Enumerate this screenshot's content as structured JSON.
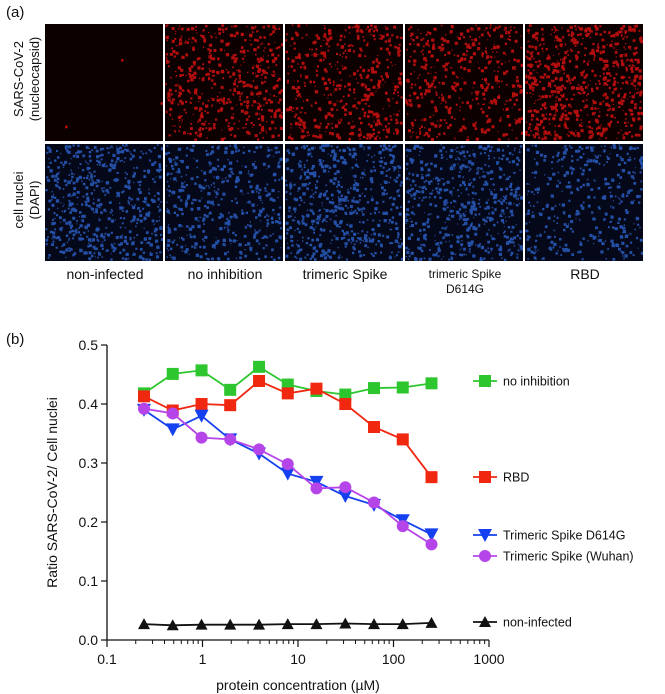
{
  "panel_a": {
    "label": "(a)",
    "row_labels": [
      {
        "line1": "SARS-CoV-2",
        "line2": "(nucleocapsid)"
      },
      {
        "line1": "cell nuclei",
        "line2": "(DAPI)"
      }
    ],
    "column_labels": [
      {
        "line1": "non-infected",
        "line2": ""
      },
      {
        "line1": "no inhibition",
        "line2": ""
      },
      {
        "line1": "trimeric Spike",
        "line2": ""
      },
      {
        "line1": "trimeric Spike",
        "line2": "D614G"
      },
      {
        "line1": "RBD",
        "line2": ""
      }
    ],
    "colors": {
      "red_channel": "#d01010",
      "blue_channel": "#2a5cc0"
    }
  },
  "panel_b": {
    "label": "(b)"
  },
  "chart_data": {
    "type": "line",
    "xscale": "log",
    "xlabel": "protein concentration (µM)",
    "ylabel": "Ratio SARS-CoV-2/ Cell nuclei",
    "xlim": [
      0.1,
      1000
    ],
    "ylim": [
      0.0,
      0.5
    ],
    "x_ticks": [
      0.1,
      1,
      10,
      100,
      1000
    ],
    "x_tick_labels": [
      "0.1",
      "1",
      "10",
      "100",
      "1000"
    ],
    "y_ticks": [
      0.0,
      0.1,
      0.2,
      0.3,
      0.4,
      0.5
    ],
    "y_tick_labels": [
      "0.0",
      "0.1",
      "0.2",
      "0.3",
      "0.4",
      "0.5"
    ],
    "x": [
      0.244,
      0.488,
      0.977,
      1.95,
      3.91,
      7.81,
      15.6,
      31.3,
      62.5,
      125,
      250
    ],
    "legend_position": "right",
    "series": [
      {
        "name": "no inhibition",
        "marker": "square",
        "color": "#2ec62e",
        "values": [
          0.418,
          0.451,
          0.457,
          0.424,
          0.463,
          0.433,
          0.422,
          0.416,
          0.427,
          0.428,
          0.435
        ]
      },
      {
        "name": "RBD",
        "marker": "square",
        "color": "#f02810",
        "values": [
          0.413,
          0.389,
          0.4,
          0.398,
          0.439,
          0.418,
          0.426,
          0.4,
          0.361,
          0.34,
          0.276
        ]
      },
      {
        "name": "Trimeric Spike D614G",
        "marker": "triangle-down",
        "color": "#1540f0",
        "values": [
          0.39,
          0.357,
          0.38,
          0.34,
          0.316,
          0.282,
          0.268,
          0.244,
          0.229,
          0.203,
          0.179
        ]
      },
      {
        "name": "Trimeric Spike (Wuhan)",
        "marker": "circle",
        "color": "#b545e8",
        "values": [
          0.392,
          0.384,
          0.343,
          0.34,
          0.323,
          0.298,
          0.257,
          0.259,
          0.233,
          0.193,
          0.162
        ]
      },
      {
        "name": "non-infected",
        "marker": "triangle-up",
        "color": "#111111",
        "values": [
          0.027,
          0.025,
          0.026,
          0.026,
          0.026,
          0.027,
          0.027,
          0.028,
          0.027,
          0.027,
          0.029
        ]
      }
    ]
  }
}
